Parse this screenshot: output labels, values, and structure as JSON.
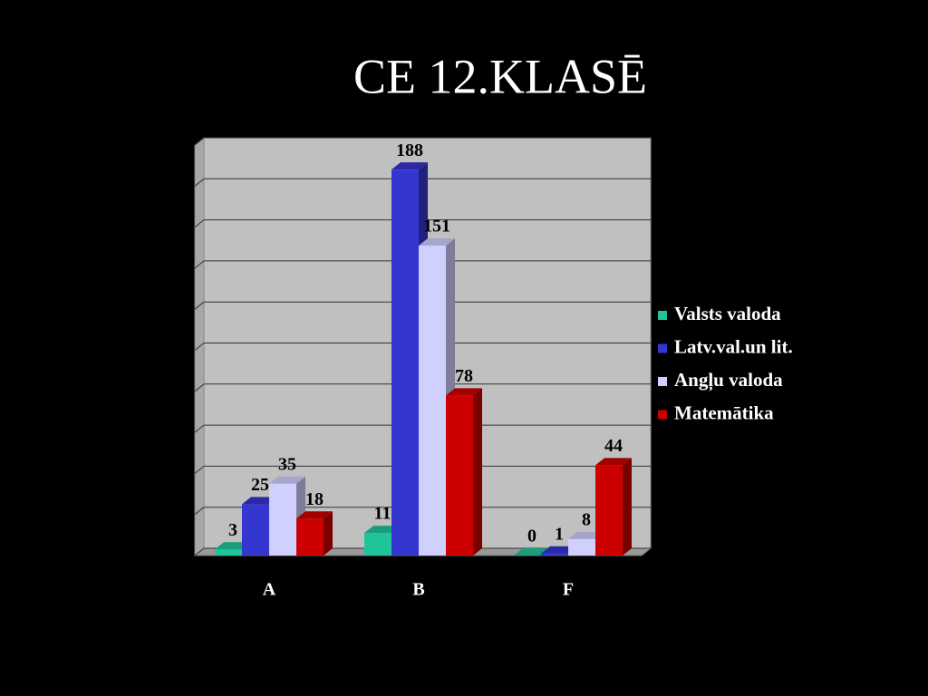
{
  "chart_data": {
    "type": "bar3d",
    "title": "CE 12.KLASĒ",
    "categories": [
      "A",
      "B",
      "F"
    ],
    "series": [
      {
        "name": "Valsts valoda",
        "color": "#1fc49a",
        "values": [
          3,
          11,
          0
        ]
      },
      {
        "name": "Latv.val.un lit.",
        "color": "#3535d0",
        "values": [
          25,
          188,
          1
        ]
      },
      {
        "name": "Angļu valoda",
        "color": "#d0d0ff",
        "values": [
          35,
          151,
          8
        ]
      },
      {
        "name": "Matemātika",
        "color": "#cc0000",
        "values": [
          18,
          78,
          44
        ]
      }
    ],
    "ylim": [
      0,
      200
    ],
    "yticks": [
      0,
      20,
      40,
      60,
      80,
      100,
      120,
      140,
      160,
      180,
      200
    ],
    "grid": true,
    "legend": "right"
  }
}
